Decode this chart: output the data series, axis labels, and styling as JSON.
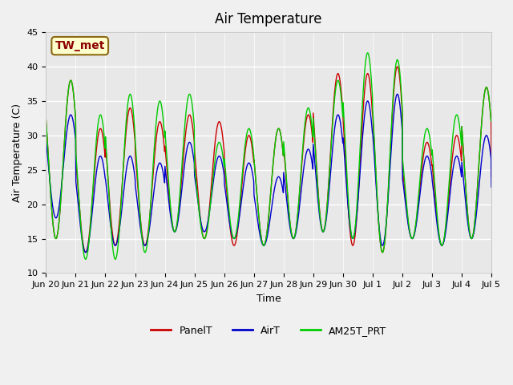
{
  "title": "Air Temperature",
  "ylabel": "Air Temperature (C)",
  "xlabel": "Time",
  "ylim": [
    10,
    45
  ],
  "background_color": "#f0f0f0",
  "plot_bg_color": "#e8e8e8",
  "annotation_text": "TW_met",
  "annotation_color": "#8b0000",
  "annotation_bg": "#ffffcc",
  "legend_labels": [
    "PanelT",
    "AirT",
    "AM25T_PRT"
  ],
  "line_colors": [
    "#cc0000",
    "#0000cc",
    "#00cc00"
  ],
  "grid_color": "#ffffff",
  "tick_label_fontsize": 8,
  "title_fontsize": 12,
  "x_tick_labels": [
    "Jun 20",
    "Jun 21",
    "Jun 22",
    "Jun 23",
    "Jun 24",
    "Jun 25",
    "Jun 26",
    "Jun 27",
    "Jun 28",
    "Jun 29",
    "Jun 30",
    "Jul 1",
    "Jul 2",
    "Jul 3",
    "Jul 4",
    "Jul 5"
  ],
  "x_tick_positions": [
    0,
    1,
    2,
    3,
    4,
    5,
    6,
    7,
    8,
    9,
    10,
    11,
    12,
    13,
    14,
    15
  ],
  "xlim": [
    0,
    15
  ],
  "yticks": [
    10,
    15,
    20,
    25,
    30,
    35,
    40,
    45
  ]
}
